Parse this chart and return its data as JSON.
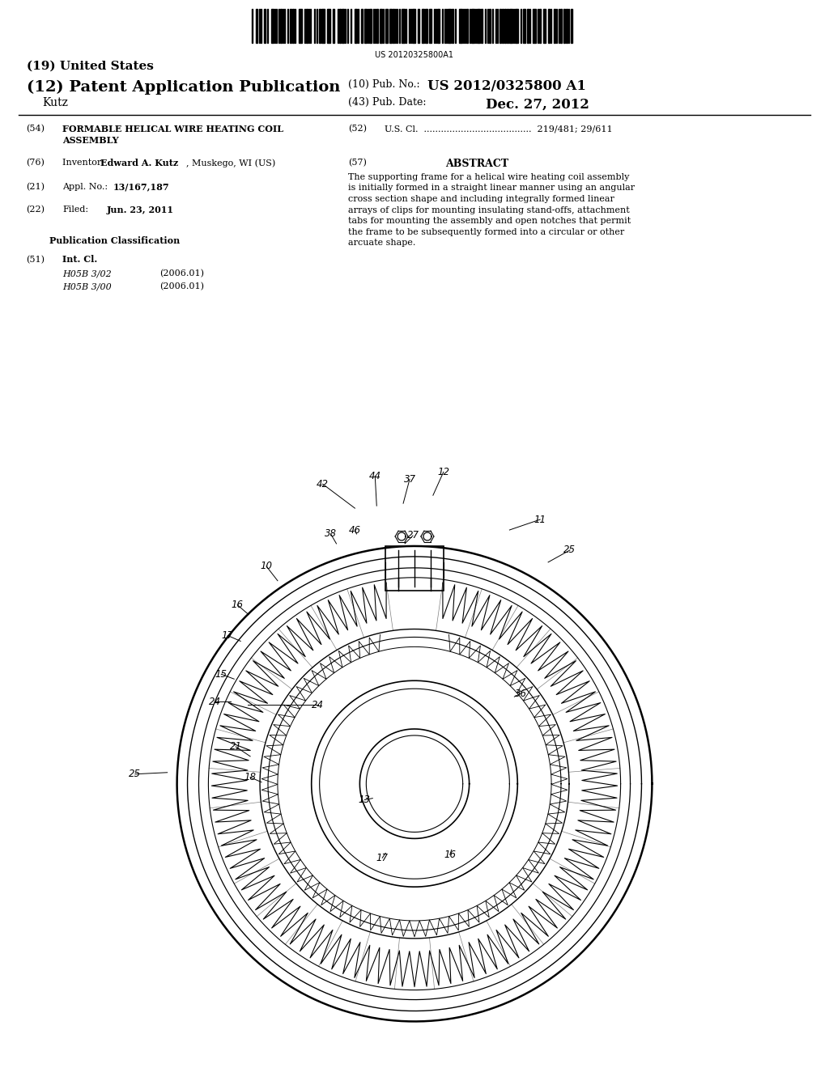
{
  "background_color": "#ffffff",
  "page_width": 10.24,
  "page_height": 13.2,
  "barcode_text": "US 20120325800A1",
  "title_19": "(19) United States",
  "title_12": "(12) Patent Application Publication",
  "pub_no_label": "(10) Pub. No.:",
  "pub_no_value": "US 2012/0325800 A1",
  "pub_date_label": "(43) Pub. Date:",
  "pub_date_value": "Dec. 27, 2012",
  "inventor_name": "Kutz",
  "field_54_label": "(54)",
  "field_52_label": "(52)",
  "field_76_label": "(76)",
  "field_57_label": "(57)",
  "field_57_title": "ABSTRACT",
  "field_57_text": "The supporting frame for a helical wire heating coil assembly\nis initially formed in a straight linear manner using an angular\ncross section shape and including integrally formed linear\narrays of clips for mounting insulating stand-offs, attachment\ntabs for mounting the assembly and open notches that permit\nthe frame to be subsequently formed into a circular or other\narcuate shape.",
  "field_21_label": "(21)",
  "field_22_label": "(22)",
  "pub_class_title": "Publication Classification",
  "field_51_label": "(51)",
  "field_51_class1": "H05B 3/02",
  "field_51_year1": "(2006.01)",
  "field_51_class2": "H05B 3/00",
  "field_51_year2": "(2006.01)"
}
